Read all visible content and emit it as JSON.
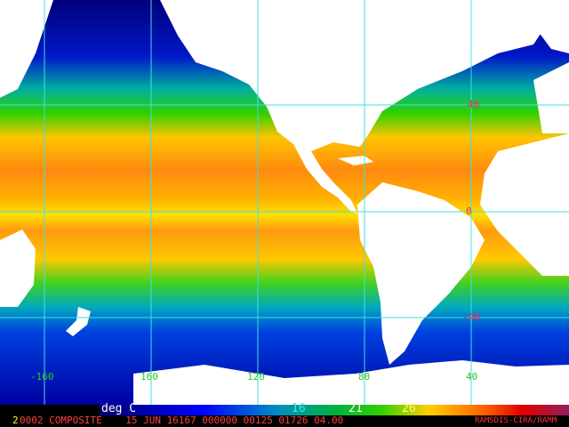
{
  "map": {
    "latitude_labels": [
      {
        "text": "40",
        "color": "#ff2255"
      },
      {
        "text": "0",
        "color": "#ff2255"
      },
      {
        "text": "-40",
        "color": "#ff2255"
      }
    ],
    "longitude_labels": [
      "-160",
      "160",
      "120",
      "80",
      "40"
    ],
    "grid_color": "#40e0e0"
  },
  "colorbar": {
    "unit_label": "deg C",
    "ticks": [
      "16",
      "21",
      "26"
    ],
    "colors": [
      "#000090",
      "#0000ff",
      "#0080ff",
      "#00a0a0",
      "#00c040",
      "#40e000",
      "#c0e000",
      "#ffd000",
      "#ff8000",
      "#ff2000",
      "#c00000",
      "#902060"
    ]
  },
  "caption": {
    "prefix": "2",
    "line": "0002 COMPOSITE    15 JUN 16167 000000 00125 01726 04.00",
    "credit": "RAMSDIS-CIRA/RAMM"
  }
}
